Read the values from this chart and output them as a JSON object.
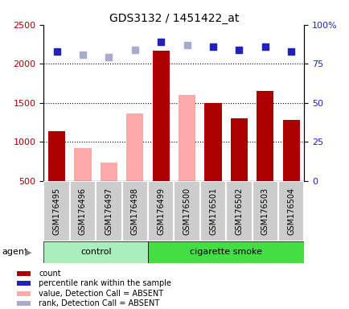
{
  "title": "GDS3132 / 1451422_at",
  "samples": [
    "GSM176495",
    "GSM176496",
    "GSM176497",
    "GSM176498",
    "GSM176499",
    "GSM176500",
    "GSM176501",
    "GSM176502",
    "GSM176503",
    "GSM176504"
  ],
  "count_values": [
    1140,
    null,
    null,
    null,
    2170,
    null,
    1500,
    1300,
    1650,
    1280
  ],
  "absent_value_bars": [
    null,
    920,
    730,
    1360,
    null,
    1600,
    null,
    null,
    null,
    null
  ],
  "percentile_rank": [
    83,
    null,
    null,
    null,
    89,
    null,
    86,
    84,
    86,
    83
  ],
  "absent_rank": [
    null,
    81,
    79,
    84,
    null,
    87,
    null,
    null,
    null,
    null
  ],
  "ylim_left": [
    500,
    2500
  ],
  "ylim_right": [
    0,
    100
  ],
  "yticks_left": [
    500,
    1000,
    1500,
    2000,
    2500
  ],
  "yticks_right": [
    0,
    25,
    50,
    75,
    100
  ],
  "right_tick_labels": [
    "0",
    "25",
    "50",
    "75",
    "100%"
  ],
  "control_indices": [
    0,
    1,
    2,
    3
  ],
  "smoke_indices": [
    4,
    5,
    6,
    7,
    8,
    9
  ],
  "control_label": "control",
  "smoke_label": "cigarette smoke",
  "agent_label": "agent",
  "bar_width": 0.65,
  "count_color": "#aa0000",
  "absent_value_color": "#ffaaaa",
  "rank_color": "#2222bb",
  "absent_rank_color": "#aaaacc",
  "bg_color": "#cccccc",
  "control_bg": "#aaeebb",
  "smoke_bg": "#44dd44",
  "legend_items": [
    {
      "color": "#aa0000",
      "label": "count"
    },
    {
      "color": "#2222bb",
      "label": "percentile rank within the sample"
    },
    {
      "color": "#ffaaaa",
      "label": "value, Detection Call = ABSENT"
    },
    {
      "color": "#aaaacc",
      "label": "rank, Detection Call = ABSENT"
    }
  ]
}
